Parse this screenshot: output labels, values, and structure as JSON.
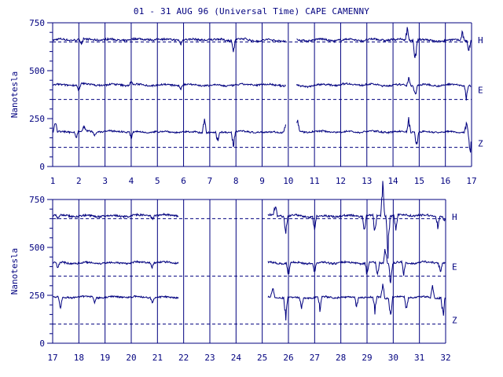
{
  "chart_data": {
    "type": "line",
    "title": "01 - 31 AUG 96 (Universal Time) CAPE CAMENNY",
    "ylabel": "Nanotesla",
    "ylim": [
      0,
      750
    ],
    "y_ticks": [
      0,
      250,
      500,
      750
    ],
    "components": [
      "H",
      "E",
      "Z"
    ],
    "colors": {
      "line": "#00007f",
      "background": "#ffffff"
    },
    "baselines_nT": {
      "H": 650,
      "E": 350,
      "Z": 100
    },
    "panels": [
      {
        "xlim": [
          1,
          17
        ],
        "x_ticks": [
          1,
          2,
          3,
          4,
          5,
          6,
          7,
          8,
          9,
          10,
          11,
          12,
          13,
          14,
          15,
          16,
          17
        ],
        "gaps": [
          [
            9.9,
            10.3
          ]
        ],
        "series": [
          {
            "name": "H",
            "level_nT": 660,
            "noise": 10,
            "spikes": [
              [
                2.1,
                -30
              ],
              [
                5.9,
                -25
              ],
              [
                7.9,
                -80
              ],
              [
                14.55,
                70
              ],
              [
                14.85,
                -120
              ],
              [
                16.65,
                50
              ],
              [
                16.9,
                -60
              ]
            ]
          },
          {
            "name": "E",
            "level_nT": 425,
            "noise": 9,
            "spikes": [
              [
                2.0,
                -35
              ],
              [
                4.0,
                20
              ],
              [
                5.9,
                -20
              ],
              [
                14.6,
                50
              ],
              [
                14.85,
                -60
              ],
              [
                16.8,
                -60
              ]
            ]
          },
          {
            "name": "Z",
            "level_nT": 180,
            "noise": 8,
            "spikes": [
              [
                1.1,
                70
              ],
              [
                1.9,
                -30
              ],
              [
                2.2,
                30
              ],
              [
                2.6,
                -25
              ],
              [
                4.0,
                -35
              ],
              [
                6.8,
                80
              ],
              [
                7.3,
                -55
              ],
              [
                7.9,
                -80
              ],
              [
                9.9,
                40
              ],
              [
                10.35,
                70
              ],
              [
                14.6,
                70
              ],
              [
                14.9,
                -90
              ],
              [
                16.8,
                60
              ],
              [
                16.95,
                -110
              ]
            ]
          }
        ]
      },
      {
        "xlim": [
          17,
          32
        ],
        "x_ticks": [
          17,
          18,
          19,
          20,
          21,
          22,
          23,
          24,
          25,
          26,
          27,
          28,
          29,
          30,
          31,
          32
        ],
        "gaps": [
          [
            21.8,
            25.2
          ]
        ],
        "series": [
          {
            "name": "H",
            "level_nT": 665,
            "noise": 10,
            "spikes": [
              [
                17.2,
                -25
              ],
              [
                20.8,
                -20
              ],
              [
                25.5,
                60
              ],
              [
                25.9,
                -90
              ],
              [
                27.0,
                -70
              ],
              [
                28.9,
                -80
              ],
              [
                29.3,
                -100
              ],
              [
                29.6,
                180
              ],
              [
                29.8,
                -190
              ],
              [
                30.1,
                -80
              ],
              [
                31.7,
                -60
              ],
              [
                31.95,
                -30
              ]
            ]
          },
          {
            "name": "E",
            "level_nT": 420,
            "noise": 9,
            "spikes": [
              [
                17.2,
                -30
              ],
              [
                20.8,
                -25
              ],
              [
                26.0,
                -60
              ],
              [
                27.0,
                -50
              ],
              [
                29.0,
                -60
              ],
              [
                29.4,
                -70
              ],
              [
                29.7,
                90
              ],
              [
                29.9,
                -110
              ],
              [
                30.4,
                -60
              ],
              [
                31.8,
                -55
              ]
            ]
          },
          {
            "name": "Z",
            "level_nT": 240,
            "noise": 8,
            "spikes": [
              [
                17.3,
                -55
              ],
              [
                18.6,
                -25
              ],
              [
                20.8,
                -30
              ],
              [
                25.4,
                70
              ],
              [
                25.9,
                -120
              ],
              [
                26.5,
                -60
              ],
              [
                27.2,
                -70
              ],
              [
                28.6,
                -50
              ],
              [
                29.3,
                -90
              ],
              [
                29.6,
                80
              ],
              [
                29.9,
                -120
              ],
              [
                30.5,
                -80
              ],
              [
                31.5,
                60
              ],
              [
                31.9,
                -110
              ]
            ]
          }
        ]
      }
    ]
  }
}
